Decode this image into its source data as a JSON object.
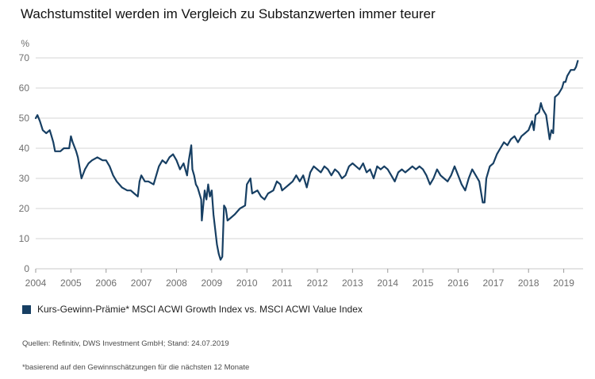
{
  "title": "Wachstumstitel werden im Vergleich zu Substanzwerten immer teurer",
  "chart_data": {
    "type": "line",
    "ylabel_unit": "%",
    "ylim": [
      0,
      70
    ],
    "yticks": [
      0,
      10,
      20,
      30,
      40,
      50,
      60,
      70
    ],
    "xlim": [
      2004,
      2019.55
    ],
    "xticks": [
      "2004",
      "2005",
      "2006",
      "2007",
      "2008",
      "2009",
      "2010",
      "2011",
      "2012",
      "2013",
      "2014",
      "2015",
      "2016",
      "2017",
      "2018",
      "2019"
    ],
    "grid": "horizontal",
    "legend_position": "bottom-left",
    "series": [
      {
        "name": "Kurs-Gewinn-Prämie* MSCI ACWI Growth Index vs. MSCI ACWI Value Index",
        "color": "#173f63",
        "points": [
          [
            2004.0,
            50
          ],
          [
            2004.05,
            51
          ],
          [
            2004.12,
            49
          ],
          [
            2004.2,
            46
          ],
          [
            2004.3,
            45
          ],
          [
            2004.4,
            46
          ],
          [
            2004.45,
            44
          ],
          [
            2004.5,
            42
          ],
          [
            2004.55,
            39
          ],
          [
            2004.7,
            39
          ],
          [
            2004.8,
            40
          ],
          [
            2004.95,
            40
          ],
          [
            2005.0,
            44
          ],
          [
            2005.05,
            42
          ],
          [
            2005.15,
            39
          ],
          [
            2005.2,
            37
          ],
          [
            2005.3,
            30
          ],
          [
            2005.4,
            33
          ],
          [
            2005.5,
            35
          ],
          [
            2005.6,
            36
          ],
          [
            2005.75,
            37
          ],
          [
            2005.9,
            36
          ],
          [
            2006.0,
            36
          ],
          [
            2006.1,
            34
          ],
          [
            2006.2,
            31
          ],
          [
            2006.3,
            29
          ],
          [
            2006.45,
            27
          ],
          [
            2006.6,
            26
          ],
          [
            2006.7,
            26
          ],
          [
            2006.8,
            25
          ],
          [
            2006.9,
            24
          ],
          [
            2006.95,
            29
          ],
          [
            2007.0,
            31
          ],
          [
            2007.1,
            29
          ],
          [
            2007.2,
            29
          ],
          [
            2007.35,
            28
          ],
          [
            2007.5,
            34
          ],
          [
            2007.6,
            36
          ],
          [
            2007.7,
            35
          ],
          [
            2007.8,
            37
          ],
          [
            2007.9,
            38
          ],
          [
            2008.0,
            36
          ],
          [
            2008.1,
            33
          ],
          [
            2008.2,
            35
          ],
          [
            2008.3,
            31
          ],
          [
            2008.35,
            36
          ],
          [
            2008.42,
            41
          ],
          [
            2008.45,
            33
          ],
          [
            2008.5,
            31
          ],
          [
            2008.55,
            28
          ],
          [
            2008.6,
            27
          ],
          [
            2008.7,
            23
          ],
          [
            2008.72,
            16
          ],
          [
            2008.8,
            26
          ],
          [
            2008.85,
            23
          ],
          [
            2008.9,
            28
          ],
          [
            2008.95,
            24
          ],
          [
            2009.0,
            26
          ],
          [
            2009.05,
            18
          ],
          [
            2009.1,
            13
          ],
          [
            2009.15,
            8
          ],
          [
            2009.2,
            5
          ],
          [
            2009.25,
            3
          ],
          [
            2009.3,
            4
          ],
          [
            2009.35,
            21
          ],
          [
            2009.4,
            20
          ],
          [
            2009.45,
            16
          ],
          [
            2009.55,
            17
          ],
          [
            2009.65,
            18
          ],
          [
            2009.8,
            20
          ],
          [
            2009.95,
            21
          ],
          [
            2010.0,
            28
          ],
          [
            2010.1,
            30
          ],
          [
            2010.15,
            25
          ],
          [
            2010.3,
            26
          ],
          [
            2010.4,
            24
          ],
          [
            2010.5,
            23
          ],
          [
            2010.6,
            25
          ],
          [
            2010.75,
            26
          ],
          [
            2010.85,
            29
          ],
          [
            2010.95,
            28
          ],
          [
            2011.0,
            26
          ],
          [
            2011.1,
            27
          ],
          [
            2011.2,
            28
          ],
          [
            2011.3,
            29
          ],
          [
            2011.4,
            31
          ],
          [
            2011.5,
            29
          ],
          [
            2011.6,
            31
          ],
          [
            2011.7,
            27
          ],
          [
            2011.8,
            32
          ],
          [
            2011.9,
            34
          ],
          [
            2012.0,
            33
          ],
          [
            2012.1,
            32
          ],
          [
            2012.2,
            34
          ],
          [
            2012.3,
            33
          ],
          [
            2012.4,
            31
          ],
          [
            2012.5,
            33
          ],
          [
            2012.6,
            32
          ],
          [
            2012.7,
            30
          ],
          [
            2012.8,
            31
          ],
          [
            2012.9,
            34
          ],
          [
            2013.0,
            35
          ],
          [
            2013.1,
            34
          ],
          [
            2013.2,
            33
          ],
          [
            2013.3,
            35
          ],
          [
            2013.4,
            32
          ],
          [
            2013.5,
            33
          ],
          [
            2013.6,
            30
          ],
          [
            2013.7,
            34
          ],
          [
            2013.8,
            33
          ],
          [
            2013.9,
            34
          ],
          [
            2014.0,
            33
          ],
          [
            2014.1,
            31
          ],
          [
            2014.2,
            29
          ],
          [
            2014.3,
            32
          ],
          [
            2014.4,
            33
          ],
          [
            2014.5,
            32
          ],
          [
            2014.6,
            33
          ],
          [
            2014.7,
            34
          ],
          [
            2014.8,
            33
          ],
          [
            2014.9,
            34
          ],
          [
            2015.0,
            33
          ],
          [
            2015.1,
            31
          ],
          [
            2015.2,
            28
          ],
          [
            2015.3,
            30
          ],
          [
            2015.4,
            33
          ],
          [
            2015.5,
            31
          ],
          [
            2015.6,
            30
          ],
          [
            2015.7,
            29
          ],
          [
            2015.8,
            31
          ],
          [
            2015.9,
            34
          ],
          [
            2016.0,
            31
          ],
          [
            2016.1,
            28
          ],
          [
            2016.2,
            26
          ],
          [
            2016.3,
            30
          ],
          [
            2016.4,
            33
          ],
          [
            2016.5,
            31
          ],
          [
            2016.6,
            29
          ],
          [
            2016.7,
            22
          ],
          [
            2016.75,
            22
          ],
          [
            2016.8,
            30
          ],
          [
            2016.9,
            34
          ],
          [
            2017.0,
            35
          ],
          [
            2017.1,
            38
          ],
          [
            2017.2,
            40
          ],
          [
            2017.3,
            42
          ],
          [
            2017.4,
            41
          ],
          [
            2017.5,
            43
          ],
          [
            2017.6,
            44
          ],
          [
            2017.7,
            42
          ],
          [
            2017.8,
            44
          ],
          [
            2017.9,
            45
          ],
          [
            2018.0,
            46
          ],
          [
            2018.1,
            49
          ],
          [
            2018.15,
            46
          ],
          [
            2018.2,
            51
          ],
          [
            2018.3,
            52
          ],
          [
            2018.35,
            55
          ],
          [
            2018.4,
            53
          ],
          [
            2018.5,
            51
          ],
          [
            2018.55,
            47
          ],
          [
            2018.6,
            43
          ],
          [
            2018.65,
            46
          ],
          [
            2018.7,
            45
          ],
          [
            2018.75,
            57
          ],
          [
            2018.85,
            58
          ],
          [
            2018.95,
            60
          ],
          [
            2019.0,
            62
          ],
          [
            2019.05,
            62
          ],
          [
            2019.1,
            64
          ],
          [
            2019.2,
            66
          ],
          [
            2019.3,
            66
          ],
          [
            2019.35,
            67
          ],
          [
            2019.4,
            69
          ]
        ]
      }
    ]
  },
  "legend": {
    "label": "Kurs-Gewinn-Prämie* MSCI ACWI Growth Index vs. MSCI ACWI Value Index"
  },
  "source": "Quellen: Refinitiv, DWS Investment GmbH; Stand: 24.07.2019",
  "footnote": "*basierend auf den Gewinnschätzungen für die nächsten 12 Monate"
}
